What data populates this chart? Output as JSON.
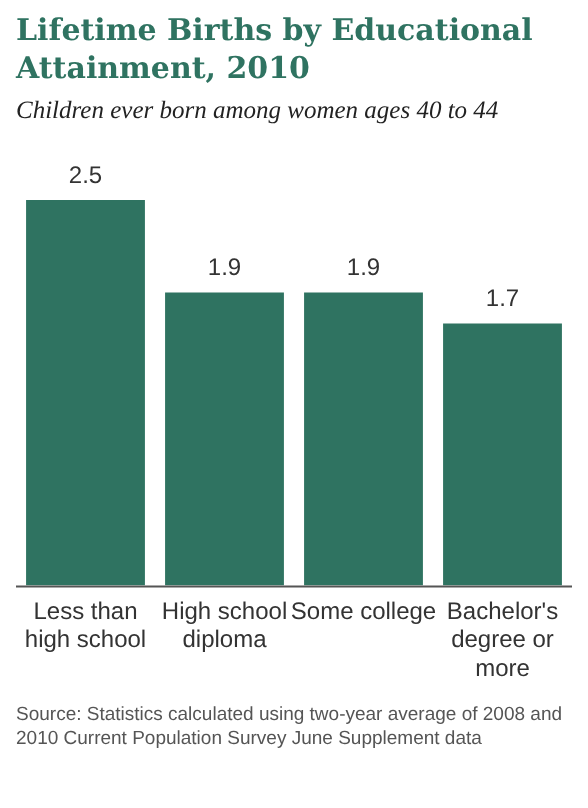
{
  "chart_data": {
    "type": "bar",
    "title": "Lifetime Births by Educational Attainment, 2010",
    "subtitle": "Children ever born among women ages 40 to 44",
    "categories": [
      "Less than high school",
      "High school diploma",
      "Some college",
      "Bachelor's degree or more"
    ],
    "values": [
      2.5,
      1.9,
      1.9,
      1.7
    ],
    "color": "#2f7361",
    "data_labels": true,
    "grid": false,
    "legend": false,
    "annotations": [
      "Source: Statistics calculated using two-year average of 2008 and 2010 Current Population Survey June Supplement data"
    ]
  }
}
